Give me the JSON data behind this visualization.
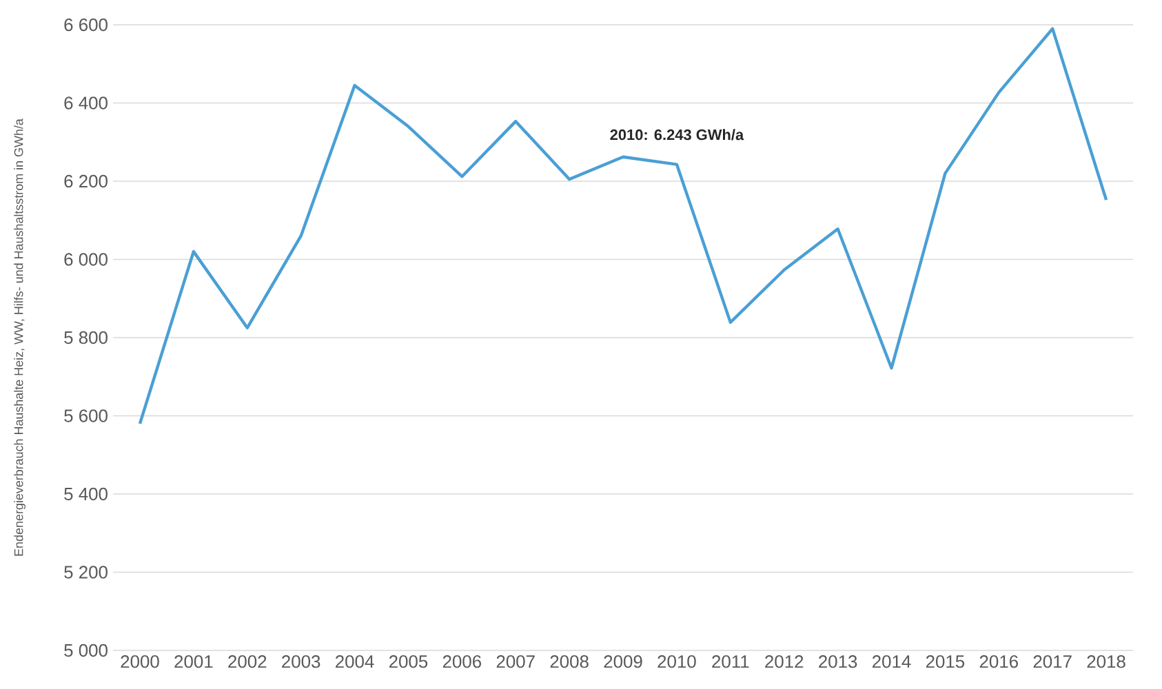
{
  "chart_data": {
    "type": "line",
    "ylabel": "Endenergieverbrauch Haushalte Heiz, WW, Hilfs- und Haushaltsstrom in GWh/a",
    "categories": [
      "2000",
      "2001",
      "2002",
      "2003",
      "2004",
      "2005",
      "2006",
      "2007",
      "2008",
      "2009",
      "2010",
      "2011",
      "2012",
      "2013",
      "2014",
      "2015",
      "2016",
      "2017",
      "2018"
    ],
    "series": [
      {
        "color": "#4a9fd5",
        "values": [
          5580,
          6020,
          5825,
          6060,
          6445,
          6340,
          6212,
          6353,
          6205,
          6262,
          6243,
          5839,
          5973,
          6078,
          5722,
          6220,
          6427,
          6590,
          6152
        ]
      }
    ],
    "ylim": [
      5000,
      6600
    ],
    "yticks": [
      {
        "value": 5000,
        "label": "5 000"
      },
      {
        "value": 5200,
        "label": "5 200"
      },
      {
        "value": 5400,
        "label": "5 400"
      },
      {
        "value": 5600,
        "label": "5 600"
      },
      {
        "value": 5800,
        "label": "5 800"
      },
      {
        "value": 6000,
        "label": "6 000"
      },
      {
        "value": 6200,
        "label": "6 200"
      },
      {
        "value": 6400,
        "label": "6 400"
      },
      {
        "value": 6600,
        "label": "6 600"
      }
    ],
    "grid": "y",
    "marker": "none",
    "line_style": "solid",
    "annotations": [
      {
        "text": "2010: 6.243 GWh/a",
        "x": "2010",
        "y": 6243
      }
    ]
  }
}
